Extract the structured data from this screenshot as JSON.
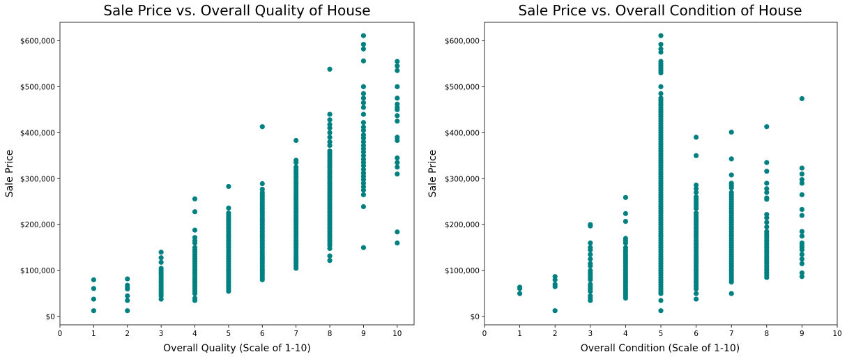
{
  "chart_data": [
    {
      "type": "scatter",
      "title": "Sale Price vs. Overall Quality of House",
      "xlabel": "Overall Quality (Scale of 1-10)",
      "ylabel": "Sale Price",
      "xlim": [
        0,
        10.5
      ],
      "ylim": [
        -18000,
        640000
      ],
      "xticks": [
        0,
        1,
        2,
        3,
        4,
        5,
        6,
        7,
        8,
        9,
        10
      ],
      "yticks": [
        0,
        100000,
        200000,
        300000,
        400000,
        500000,
        600000
      ],
      "ytick_labels": [
        "$0",
        "$100,000",
        "$200,000",
        "$300,000",
        "$400,000",
        "$500,000",
        "$600,000"
      ],
      "color": "#008080",
      "grid": false,
      "columns": [
        {
          "x": 1,
          "points": [
            12789,
            37900,
            61000,
            80000
          ]
        },
        {
          "x": 2,
          "points": [
            12789,
            35000,
            45000,
            60000,
            63000,
            68000,
            82000
          ]
        },
        {
          "x": 3,
          "points": [
            37900,
            45000,
            50000,
            55000,
            60000,
            65000,
            70000,
            75000,
            80000,
            85000,
            90000,
            95000,
            100000,
            105000,
            118000,
            128000,
            140000
          ]
        },
        {
          "x": 4,
          "points": [
            35000,
            40000,
            50000,
            55000,
            60000,
            65000,
            70000,
            75000,
            80000,
            85000,
            90000,
            95000,
            100000,
            105000,
            110000,
            115000,
            120000,
            125000,
            130000,
            135000,
            140000,
            145000,
            150000,
            160000,
            165000,
            172000,
            188000,
            228000,
            256000
          ]
        },
        {
          "x": 5,
          "points": [
            55000,
            60000,
            65000,
            70000,
            75000,
            80000,
            85000,
            90000,
            95000,
            100000,
            105000,
            110000,
            115000,
            120000,
            125000,
            130000,
            135000,
            140000,
            145000,
            150000,
            155000,
            160000,
            165000,
            170000,
            175000,
            180000,
            185000,
            190000,
            195000,
            200000,
            205000,
            210000,
            215000,
            220000,
            225000,
            236000,
            283000
          ]
        },
        {
          "x": 6,
          "points": [
            80000,
            85000,
            90000,
            95000,
            100000,
            105000,
            110000,
            115000,
            120000,
            125000,
            130000,
            135000,
            140000,
            145000,
            150000,
            155000,
            160000,
            165000,
            170000,
            175000,
            180000,
            185000,
            190000,
            195000,
            200000,
            205000,
            210000,
            215000,
            220000,
            225000,
            230000,
            235000,
            240000,
            245000,
            250000,
            255000,
            260000,
            265000,
            270000,
            277000,
            289000,
            413000
          ]
        },
        {
          "x": 7,
          "points": [
            105000,
            110000,
            115000,
            120000,
            125000,
            130000,
            135000,
            140000,
            145000,
            150000,
            155000,
            160000,
            165000,
            170000,
            175000,
            180000,
            185000,
            190000,
            195000,
            200000,
            205000,
            210000,
            215000,
            220000,
            225000,
            230000,
            235000,
            240000,
            245000,
            250000,
            255000,
            260000,
            265000,
            270000,
            275000,
            280000,
            285000,
            290000,
            295000,
            300000,
            305000,
            310000,
            315000,
            320000,
            325000,
            335000,
            340000,
            383000
          ]
        },
        {
          "x": 8,
          "points": [
            122000,
            132000,
            148000,
            155000,
            160000,
            165000,
            170000,
            175000,
            180000,
            185000,
            190000,
            195000,
            200000,
            205000,
            210000,
            215000,
            220000,
            225000,
            230000,
            235000,
            240000,
            245000,
            250000,
            255000,
            260000,
            265000,
            270000,
            275000,
            280000,
            285000,
            290000,
            295000,
            300000,
            305000,
            310000,
            315000,
            320000,
            325000,
            330000,
            335000,
            340000,
            345000,
            350000,
            355000,
            360000,
            372000,
            380000,
            390000,
            400000,
            410000,
            418000,
            428000,
            440000,
            538000
          ]
        },
        {
          "x": 9,
          "points": [
            150000,
            239000,
            265000,
            275000,
            282000,
            290000,
            298000,
            305000,
            312000,
            320000,
            328000,
            335000,
            342000,
            350000,
            358000,
            365000,
            372000,
            380000,
            388000,
            395000,
            405000,
            412000,
            422000,
            440000,
            455000,
            465000,
            475000,
            485000,
            500000,
            556000,
            582000,
            592000,
            611000
          ]
        },
        {
          "x": 10,
          "points": [
            160000,
            184000,
            310000,
            325000,
            335000,
            345000,
            383000,
            390000,
            425000,
            437000,
            450000,
            455000,
            462000,
            475000,
            500000,
            535000,
            545000,
            555000
          ]
        }
      ]
    },
    {
      "type": "scatter",
      "title": "Sale Price vs. Overall Condition of House",
      "xlabel": "Overall Condition (Scale of 1-10)",
      "ylabel": "Sale Price",
      "xlim": [
        0,
        10
      ],
      "ylim": [
        -18000,
        640000
      ],
      "xticks": [
        0,
        1,
        2,
        3,
        4,
        5,
        6,
        7,
        8,
        9,
        10
      ],
      "yticks": [
        0,
        100000,
        200000,
        300000,
        400000,
        500000,
        600000
      ],
      "ytick_labels": [
        "$0",
        "$100,000",
        "$200,000",
        "$300,000",
        "$400,000",
        "$500,000",
        "$600,000"
      ],
      "color": "#008080",
      "grid": false,
      "columns": [
        {
          "x": 1,
          "points": [
            50000,
            61000,
            64000
          ]
        },
        {
          "x": 2,
          "points": [
            12789,
            65000,
            70000,
            80000,
            87000
          ]
        },
        {
          "x": 3,
          "points": [
            35000,
            40000,
            45000,
            55000,
            60000,
            65000,
            70000,
            80000,
            85000,
            90000,
            95000,
            100000,
            110000,
            115000,
            125000,
            135000,
            145000,
            150000,
            160000,
            197000,
            200000
          ]
        },
        {
          "x": 4,
          "points": [
            40000,
            45000,
            50000,
            55000,
            60000,
            65000,
            70000,
            75000,
            80000,
            85000,
            90000,
            95000,
            100000,
            105000,
            110000,
            115000,
            120000,
            125000,
            130000,
            135000,
            140000,
            145000,
            150000,
            160000,
            165000,
            170000,
            207000,
            224000,
            259000
          ]
        },
        {
          "x": 5,
          "points": [
            12789,
            35000,
            50000,
            55000,
            60000,
            65000,
            70000,
            75000,
            80000,
            85000,
            90000,
            95000,
            100000,
            105000,
            110000,
            115000,
            120000,
            125000,
            130000,
            135000,
            140000,
            145000,
            150000,
            155000,
            160000,
            165000,
            170000,
            175000,
            180000,
            185000,
            190000,
            195000,
            200000,
            205000,
            210000,
            215000,
            220000,
            225000,
            230000,
            235000,
            240000,
            245000,
            250000,
            255000,
            260000,
            265000,
            270000,
            275000,
            280000,
            285000,
            290000,
            295000,
            300000,
            305000,
            310000,
            315000,
            320000,
            325000,
            330000,
            335000,
            340000,
            345000,
            350000,
            355000,
            360000,
            365000,
            370000,
            375000,
            380000,
            385000,
            390000,
            395000,
            400000,
            405000,
            410000,
            415000,
            420000,
            425000,
            430000,
            435000,
            440000,
            445000,
            450000,
            455000,
            460000,
            465000,
            470000,
            475000,
            485000,
            500000,
            530000,
            535000,
            540000,
            545000,
            550000,
            555000,
            575000,
            582000,
            592000,
            611000
          ]
        },
        {
          "x": 6,
          "points": [
            38000,
            50000,
            60000,
            65000,
            70000,
            75000,
            80000,
            85000,
            90000,
            95000,
            100000,
            105000,
            110000,
            115000,
            120000,
            125000,
            130000,
            135000,
            140000,
            145000,
            150000,
            155000,
            160000,
            165000,
            170000,
            175000,
            180000,
            185000,
            190000,
            195000,
            200000,
            205000,
            210000,
            215000,
            220000,
            225000,
            235000,
            240000,
            245000,
            250000,
            255000,
            260000,
            270000,
            278000,
            286000,
            350000,
            390000
          ]
        },
        {
          "x": 7,
          "points": [
            50000,
            75000,
            80000,
            85000,
            90000,
            95000,
            100000,
            105000,
            110000,
            115000,
            120000,
            125000,
            130000,
            135000,
            140000,
            145000,
            150000,
            155000,
            160000,
            165000,
            170000,
            175000,
            180000,
            185000,
            190000,
            195000,
            200000,
            205000,
            210000,
            215000,
            220000,
            225000,
            230000,
            235000,
            240000,
            245000,
            250000,
            255000,
            260000,
            265000,
            270000,
            280000,
            285000,
            290000,
            308000,
            343000,
            401000
          ]
        },
        {
          "x": 8,
          "points": [
            85000,
            90000,
            95000,
            100000,
            105000,
            110000,
            115000,
            120000,
            125000,
            130000,
            135000,
            140000,
            145000,
            150000,
            155000,
            160000,
            165000,
            170000,
            175000,
            180000,
            185000,
            195000,
            205000,
            215000,
            222000,
            255000,
            258000,
            270000,
            278000,
            290000,
            316000,
            335000,
            413000
          ]
        },
        {
          "x": 9,
          "points": [
            87000,
            95000,
            115000,
            125000,
            135000,
            145000,
            150000,
            155000,
            160000,
            175000,
            185000,
            220000,
            233000,
            265000,
            290000,
            298000,
            310000,
            323000,
            474000
          ]
        }
      ]
    }
  ]
}
